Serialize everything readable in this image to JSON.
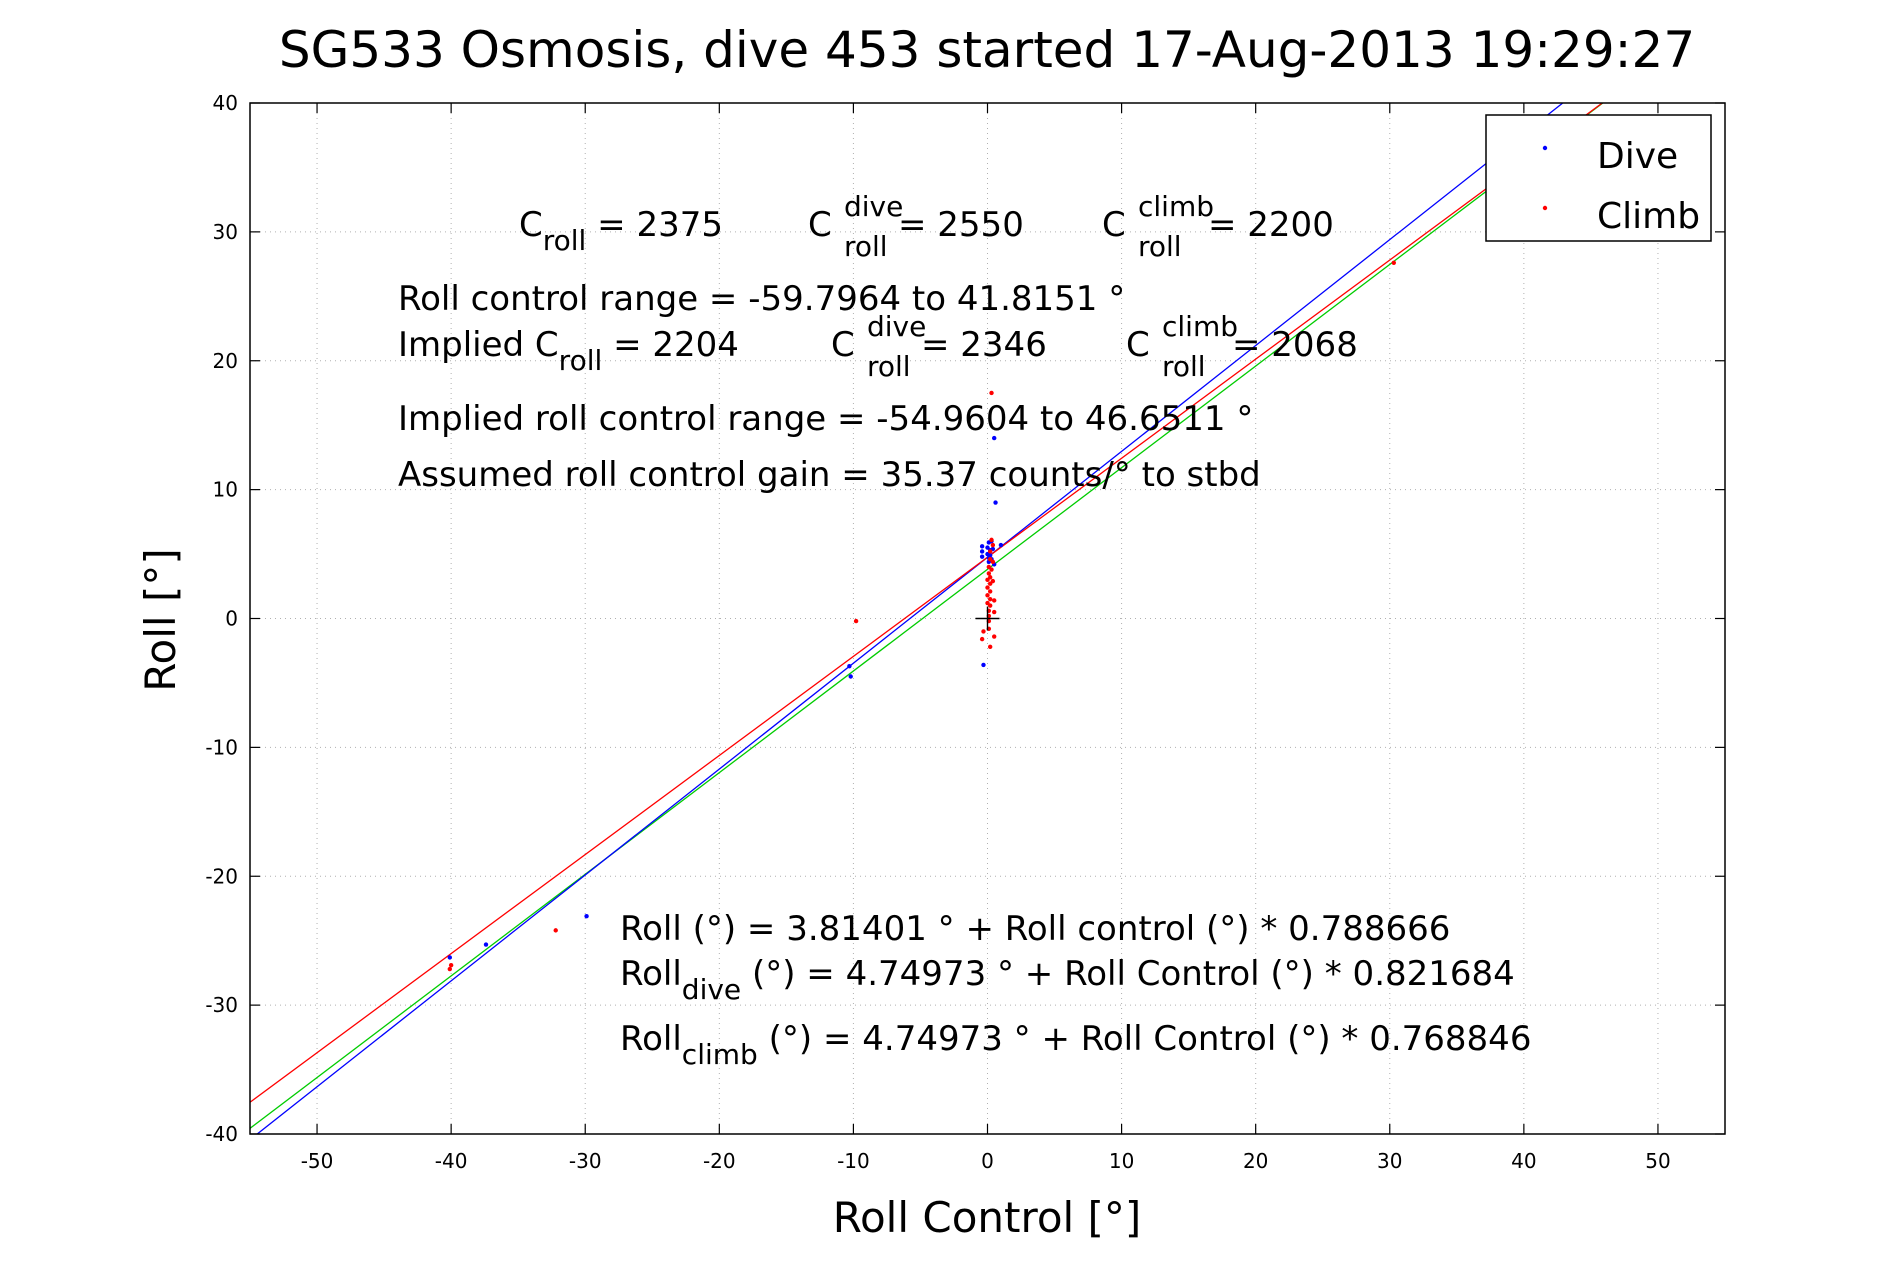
{
  "chart_data": {
    "type": "scatter",
    "title": "SG533 Osmosis, dive 453 started 17-Aug-2013 19:29:27",
    "xlabel": "Roll Control [°]",
    "ylabel": "Roll [°]",
    "xlim": [
      -55,
      55
    ],
    "ylim": [
      -40,
      40
    ],
    "x_ticks": [
      "-50",
      "-40",
      "-30",
      "-20",
      "-10",
      "0",
      "10",
      "20",
      "30",
      "40",
      "50"
    ],
    "y_ticks": [
      "40",
      "30",
      "20",
      "10",
      "0",
      "-10",
      "-20",
      "-30",
      "-40"
    ],
    "grid": true,
    "legend_position": "top-right",
    "legend": [
      {
        "label": "Dive",
        "color": "#0000ff"
      },
      {
        "label": "Climb",
        "color": "#ff0000"
      }
    ],
    "series": [
      {
        "name": "Dive",
        "color": "#0000ff",
        "points": [
          [
            -40.1,
            -26.3
          ],
          [
            -37.4,
            -25.3
          ],
          [
            -29.9,
            -23.1
          ],
          [
            -10.3,
            -3.7
          ],
          [
            -10.2,
            -4.5
          ],
          [
            -0.4,
            5.6
          ],
          [
            -0.4,
            5.2
          ],
          [
            -0.4,
            4.8
          ],
          [
            -0.3,
            -3.6
          ],
          [
            0,
            5.5
          ],
          [
            0,
            5.0
          ],
          [
            0.1,
            4.7
          ],
          [
            0.1,
            4.4
          ],
          [
            0.1,
            5.9
          ],
          [
            0.2,
            5.3
          ],
          [
            0.2,
            4.9
          ],
          [
            0.3,
            4.6
          ],
          [
            0.3,
            6.0
          ],
          [
            0.4,
            5.4
          ],
          [
            0.5,
            4.2
          ],
          [
            0.5,
            14.0
          ],
          [
            0.6,
            9.0
          ],
          [
            1.0,
            5.7
          ]
        ]
      },
      {
        "name": "Climb",
        "color": "#ff0000",
        "points": [
          [
            -40.1,
            -27.2
          ],
          [
            -40.0,
            -26.9
          ],
          [
            -32.2,
            -24.2
          ],
          [
            -9.8,
            -0.2
          ],
          [
            -0.4,
            -1.6
          ],
          [
            -0.3,
            -1.0
          ],
          [
            0,
            3.0
          ],
          [
            0,
            2.4
          ],
          [
            0,
            1.8
          ],
          [
            0,
            1.2
          ],
          [
            0.1,
            4.0
          ],
          [
            0.1,
            3.5
          ],
          [
            0.1,
            0.6
          ],
          [
            0.1,
            0.2
          ],
          [
            0.1,
            -0.2
          ],
          [
            0.1,
            -0.8
          ],
          [
            0.2,
            5.2
          ],
          [
            0.2,
            4.6
          ],
          [
            0.2,
            3.2
          ],
          [
            0.2,
            2.7
          ],
          [
            0.2,
            2.1
          ],
          [
            0.2,
            1.5
          ],
          [
            0.2,
            1.0
          ],
          [
            0.2,
            -2.2
          ],
          [
            0.3,
            3.8
          ],
          [
            0.3,
            17.5
          ],
          [
            0.3,
            6.1
          ],
          [
            0.4,
            5.7
          ],
          [
            0.4,
            4.4
          ],
          [
            0.4,
            2.9
          ],
          [
            0.5,
            1.4
          ],
          [
            0.5,
            0.5
          ],
          [
            0.5,
            -1.4
          ],
          [
            30.3,
            27.6
          ]
        ]
      }
    ],
    "fit_lines": [
      {
        "color": "#00cc00",
        "intercept": 3.81401,
        "slope": 0.788666
      },
      {
        "color": "#0000ff",
        "intercept": 4.74973,
        "slope": 0.821684
      },
      {
        "color": "#ff0000",
        "intercept": 4.74973,
        "slope": 0.768846
      }
    ],
    "black_cross": [
      0,
      0
    ]
  },
  "annotations": {
    "c_roll_base": "C",
    "c_roll_sub": "roll",
    "c_roll_rest": " = 2375",
    "c_dive_base": "C",
    "c_dive_sup": "dive",
    "c_dive_sub": "roll",
    "c_dive_rest": " = 2550",
    "c_climb_base": "C",
    "c_climb_sup": "climb",
    "c_climb_sub": "roll",
    "c_climb_rest": " = 2200",
    "range_line": "Roll control range = -59.7964 to 41.8151 °",
    "implied_base": "Implied C",
    "implied_sub": "roll",
    "implied_rest": " = 2204",
    "implied_dive_base": "C",
    "implied_dive_sup": "dive",
    "implied_dive_sub": "roll",
    "implied_dive_rest": " = 2346",
    "implied_climb_base": "C",
    "implied_climb_sup": "climb",
    "implied_climb_sub": "roll",
    "implied_climb_rest": " = 2068",
    "implied_range_line": "Implied roll control range = -54.9604 to 46.6511 °",
    "gain_line": "Assumed roll control gain = 35.37 counts/° to stbd",
    "fit_all": "Roll (°) = 3.81401 ° + Roll control (°) * 0.788666",
    "fit_dive_base": "Roll",
    "fit_dive_sub": "dive",
    "fit_dive_rest": " (°) = 4.74973 ° + Roll Control (°) * 0.821684",
    "fit_climb_base": "Roll",
    "fit_climb_sub": "climb",
    "fit_climb_rest": " (°) = 4.74973 ° + Roll Control (°) * 0.768846"
  }
}
